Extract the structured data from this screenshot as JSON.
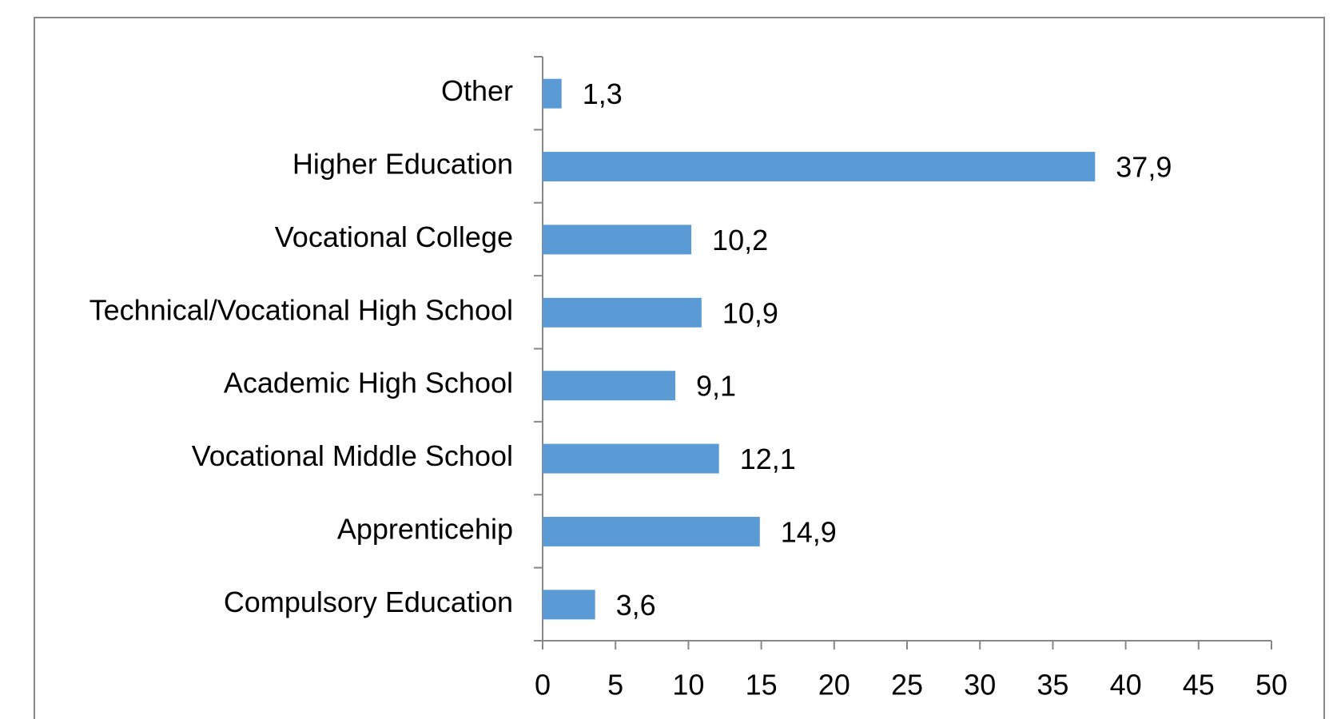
{
  "chart_data": {
    "type": "bar",
    "orientation": "horizontal",
    "categories": [
      "Other",
      "Higher Education",
      "Vocational College",
      "Technical/Vocational High School",
      "Academic High School",
      "Vocational Middle School",
      "Apprenticehip",
      "Compulsory Education"
    ],
    "values": [
      1.3,
      37.9,
      10.2,
      10.9,
      9.1,
      12.1,
      14.9,
      3.6
    ],
    "value_labels": [
      "1,3",
      "37,9",
      "10,2",
      "10,9",
      "9,1",
      "12,1",
      "14,9",
      "3,6"
    ],
    "color": "#5b9bd5",
    "xlim": [
      0,
      50
    ],
    "xticks": [
      0,
      5,
      10,
      15,
      20,
      25,
      30,
      35,
      40,
      45,
      50
    ]
  }
}
